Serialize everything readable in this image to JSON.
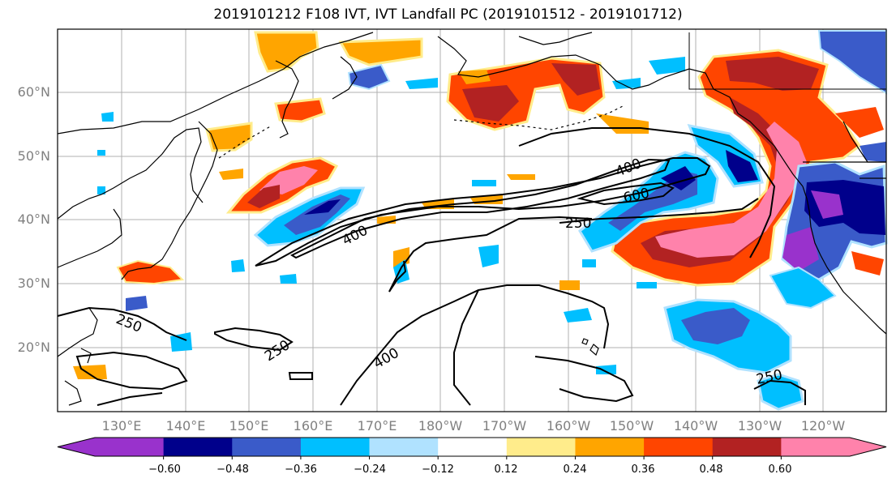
{
  "title": "2019101212 F108 IVT, IVT Landfall PC (2019101512 - 2019101712)",
  "latitude_labels": [
    "60°N",
    "50°N",
    "40°N",
    "30°N",
    "20°N"
  ],
  "longitude_labels": [
    "130°E",
    "140°E",
    "150°E",
    "160°E",
    "170°E",
    "180°W",
    "170°W",
    "160°W",
    "150°W",
    "140°W",
    "130°W",
    "120°W"
  ],
  "contour_labels": [
    "400",
    "600",
    "250",
    "400",
    "250",
    "250",
    "400",
    "250"
  ],
  "colorbar": {
    "tick_labels": [
      "−0.60",
      "−0.48",
      "−0.36",
      "−0.24",
      "−0.12",
      "0.12",
      "0.24",
      "0.36",
      "0.48",
      "0.60"
    ],
    "colors": [
      "#9932CC",
      "#00008B",
      "#3A5BC9",
      "#00BFFF",
      "#B0E2FF",
      "#FFFFFF",
      "#FFEC8B",
      "#FFA500",
      "#FF4500",
      "#B22222",
      "#FF82AB"
    ]
  },
  "palette": {
    "land": "#ffffff",
    "gridline": "#b0b0b0",
    "coast": "#000000"
  }
}
